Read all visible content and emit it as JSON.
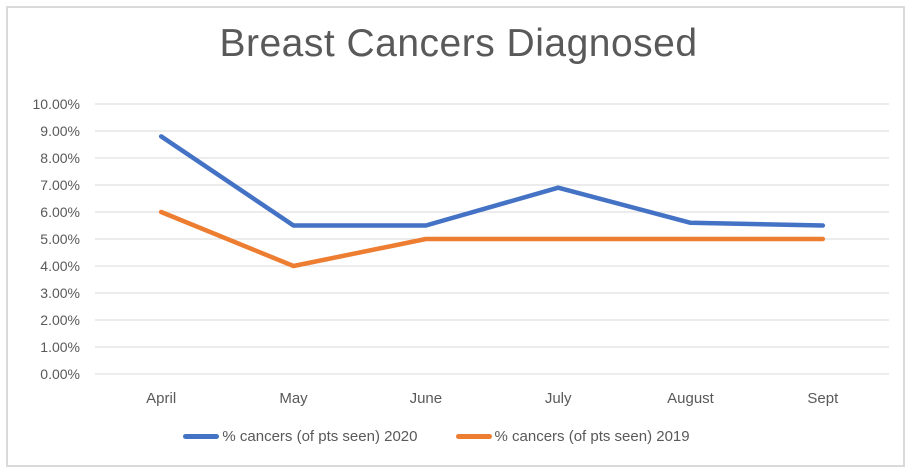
{
  "chart_data": {
    "type": "line",
    "title": "Breast Cancers Diagnosed",
    "categories": [
      "April",
      "May",
      "June",
      "July",
      "August",
      "Sept"
    ],
    "series": [
      {
        "name": "% cancers (of pts seen) 2020",
        "color": "#4472C4",
        "values": [
          8.8,
          5.5,
          5.5,
          6.9,
          5.6,
          5.5
        ]
      },
      {
        "name": "% cancers (of pts seen) 2019",
        "color": "#ED7D31",
        "values": [
          6.0,
          4.0,
          5.0,
          5.0,
          5.0,
          5.0
        ]
      }
    ],
    "xlabel": "",
    "ylabel": "",
    "ylim": [
      0,
      10
    ],
    "ytick_step": 1,
    "ytick_labels": [
      "0.00%",
      "1.00%",
      "2.00%",
      "3.00%",
      "4.00%",
      "5.00%",
      "6.00%",
      "7.00%",
      "8.00%",
      "9.00%",
      "10.00%"
    ],
    "grid": true,
    "legend_position": "bottom",
    "colors": {
      "title_text": "#595959",
      "axis_text": "#595959",
      "gridline": "#D9D9D9",
      "border": "#DADADA",
      "background": "#FFFFFF"
    }
  }
}
